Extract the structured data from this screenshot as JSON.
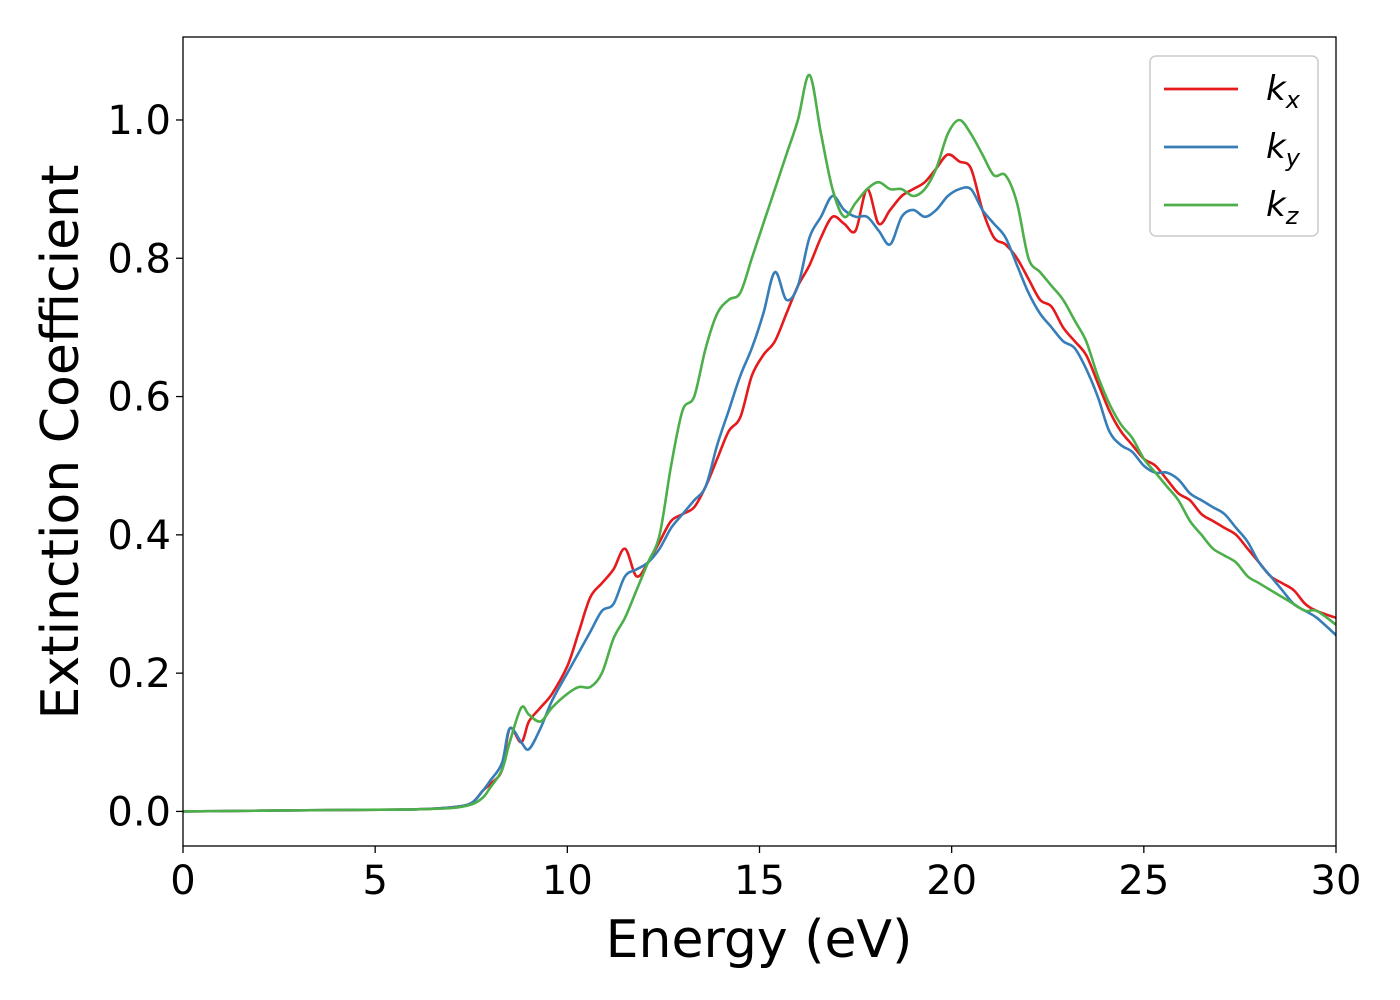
{
  "chart_data": {
    "type": "line",
    "title": "",
    "xlabel": "Energy (eV)",
    "ylabel": "Extinction Coefficient",
    "xlim": [
      0,
      30
    ],
    "ylim": [
      -0.05,
      1.12
    ],
    "xticks": [
      0,
      5,
      10,
      15,
      20,
      25,
      30
    ],
    "yticks": [
      0.0,
      0.2,
      0.4,
      0.6,
      0.8,
      1.0
    ],
    "xtick_labels": [
      "0",
      "5",
      "10",
      "15",
      "20",
      "25",
      "30"
    ],
    "ytick_labels": [
      "0.0",
      "0.2",
      "0.4",
      "0.6",
      "0.8",
      "1.0"
    ],
    "grid": false,
    "legend_position": "top-right",
    "series": [
      {
        "name": "k_x",
        "label_main": "k",
        "label_sub": "x",
        "color": "#e41a1c",
        "x": [
          0,
          2,
          4,
          6,
          7,
          7.5,
          7.8,
          8.0,
          8.3,
          8.5,
          8.8,
          9.0,
          9.3,
          9.6,
          10.0,
          10.3,
          10.6,
          10.9,
          11.2,
          11.5,
          11.8,
          12.1,
          12.4,
          12.7,
          13.0,
          13.3,
          13.6,
          13.9,
          14.2,
          14.5,
          14.8,
          15.1,
          15.4,
          15.7,
          16.0,
          16.3,
          16.6,
          16.9,
          17.2,
          17.5,
          17.8,
          18.1,
          18.4,
          18.7,
          19.0,
          19.3,
          19.6,
          19.9,
          20.2,
          20.5,
          20.8,
          21.1,
          21.4,
          21.7,
          22.0,
          22.3,
          22.6,
          22.9,
          23.2,
          23.5,
          23.8,
          24.1,
          24.4,
          24.7,
          25.0,
          25.3,
          25.6,
          25.9,
          26.2,
          26.5,
          26.8,
          27.1,
          27.4,
          27.7,
          28.0,
          28.3,
          28.6,
          28.9,
          29.2,
          29.5,
          30.0
        ],
        "y": [
          0.0,
          0.001,
          0.002,
          0.003,
          0.006,
          0.012,
          0.03,
          0.04,
          0.06,
          0.12,
          0.1,
          0.13,
          0.15,
          0.17,
          0.21,
          0.26,
          0.31,
          0.33,
          0.35,
          0.38,
          0.34,
          0.36,
          0.39,
          0.42,
          0.43,
          0.44,
          0.47,
          0.51,
          0.55,
          0.57,
          0.63,
          0.66,
          0.68,
          0.72,
          0.76,
          0.79,
          0.83,
          0.86,
          0.85,
          0.84,
          0.9,
          0.85,
          0.87,
          0.89,
          0.9,
          0.91,
          0.93,
          0.95,
          0.94,
          0.93,
          0.87,
          0.83,
          0.82,
          0.8,
          0.77,
          0.74,
          0.73,
          0.7,
          0.68,
          0.66,
          0.62,
          0.58,
          0.55,
          0.53,
          0.51,
          0.5,
          0.48,
          0.46,
          0.45,
          0.43,
          0.42,
          0.41,
          0.4,
          0.38,
          0.36,
          0.34,
          0.33,
          0.32,
          0.3,
          0.29,
          0.28
        ]
      },
      {
        "name": "k_y",
        "label_main": "k",
        "label_sub": "y",
        "color": "#377eb8",
        "x": [
          0,
          2,
          4,
          6,
          7,
          7.5,
          7.8,
          8.0,
          8.3,
          8.5,
          8.8,
          9.0,
          9.3,
          9.6,
          10.0,
          10.3,
          10.6,
          10.9,
          11.2,
          11.5,
          11.8,
          12.1,
          12.4,
          12.7,
          13.0,
          13.3,
          13.6,
          13.9,
          14.2,
          14.5,
          14.8,
          15.1,
          15.4,
          15.7,
          16.0,
          16.3,
          16.6,
          16.9,
          17.2,
          17.5,
          17.8,
          18.1,
          18.4,
          18.7,
          19.0,
          19.3,
          19.6,
          19.9,
          20.2,
          20.5,
          20.8,
          21.1,
          21.4,
          21.7,
          22.0,
          22.3,
          22.6,
          22.9,
          23.2,
          23.5,
          23.8,
          24.1,
          24.4,
          24.7,
          25.0,
          25.3,
          25.6,
          25.9,
          26.2,
          26.5,
          26.8,
          27.1,
          27.4,
          27.7,
          28.0,
          28.3,
          28.6,
          28.9,
          29.2,
          29.5,
          30.0
        ],
        "y": [
          0.0,
          0.001,
          0.002,
          0.003,
          0.006,
          0.012,
          0.03,
          0.045,
          0.07,
          0.12,
          0.1,
          0.09,
          0.12,
          0.16,
          0.2,
          0.23,
          0.26,
          0.29,
          0.3,
          0.34,
          0.35,
          0.36,
          0.38,
          0.41,
          0.43,
          0.45,
          0.47,
          0.53,
          0.58,
          0.63,
          0.67,
          0.72,
          0.78,
          0.74,
          0.76,
          0.83,
          0.86,
          0.89,
          0.87,
          0.86,
          0.86,
          0.84,
          0.82,
          0.86,
          0.87,
          0.86,
          0.87,
          0.89,
          0.9,
          0.9,
          0.87,
          0.85,
          0.83,
          0.79,
          0.75,
          0.72,
          0.7,
          0.68,
          0.67,
          0.64,
          0.6,
          0.55,
          0.53,
          0.52,
          0.5,
          0.49,
          0.49,
          0.48,
          0.46,
          0.45,
          0.44,
          0.43,
          0.41,
          0.39,
          0.36,
          0.34,
          0.32,
          0.3,
          0.29,
          0.28,
          0.255
        ]
      },
      {
        "name": "k_z",
        "label_main": "k",
        "label_sub": "z",
        "color": "#4daf4a",
        "x": [
          0,
          2,
          4,
          6,
          7,
          7.5,
          7.8,
          8.0,
          8.3,
          8.5,
          8.8,
          9.0,
          9.3,
          9.6,
          10.0,
          10.3,
          10.6,
          10.9,
          11.2,
          11.5,
          11.8,
          12.1,
          12.4,
          12.7,
          13.0,
          13.3,
          13.6,
          13.9,
          14.2,
          14.5,
          14.8,
          15.1,
          15.4,
          15.7,
          16.0,
          16.3,
          16.6,
          16.9,
          17.2,
          17.5,
          17.8,
          18.1,
          18.4,
          18.7,
          19.0,
          19.3,
          19.6,
          19.9,
          20.2,
          20.5,
          20.8,
          21.1,
          21.4,
          21.7,
          22.0,
          22.3,
          22.6,
          22.9,
          23.2,
          23.5,
          23.8,
          24.1,
          24.4,
          24.7,
          25.0,
          25.3,
          25.6,
          25.9,
          26.2,
          26.5,
          26.8,
          27.1,
          27.4,
          27.7,
          28.0,
          28.3,
          28.6,
          28.9,
          29.2,
          29.5,
          30.0
        ],
        "y": [
          0.0,
          0.001,
          0.002,
          0.003,
          0.005,
          0.01,
          0.02,
          0.035,
          0.06,
          0.1,
          0.15,
          0.14,
          0.13,
          0.15,
          0.17,
          0.18,
          0.18,
          0.2,
          0.25,
          0.28,
          0.32,
          0.36,
          0.4,
          0.5,
          0.58,
          0.6,
          0.67,
          0.72,
          0.74,
          0.75,
          0.8,
          0.85,
          0.9,
          0.95,
          1.0,
          1.065,
          0.98,
          0.9,
          0.86,
          0.88,
          0.9,
          0.91,
          0.9,
          0.9,
          0.89,
          0.9,
          0.93,
          0.98,
          1.0,
          0.98,
          0.95,
          0.92,
          0.92,
          0.88,
          0.8,
          0.78,
          0.76,
          0.74,
          0.71,
          0.68,
          0.63,
          0.59,
          0.56,
          0.54,
          0.51,
          0.49,
          0.47,
          0.45,
          0.42,
          0.4,
          0.38,
          0.37,
          0.36,
          0.34,
          0.33,
          0.32,
          0.31,
          0.3,
          0.29,
          0.29,
          0.27
        ]
      }
    ]
  }
}
